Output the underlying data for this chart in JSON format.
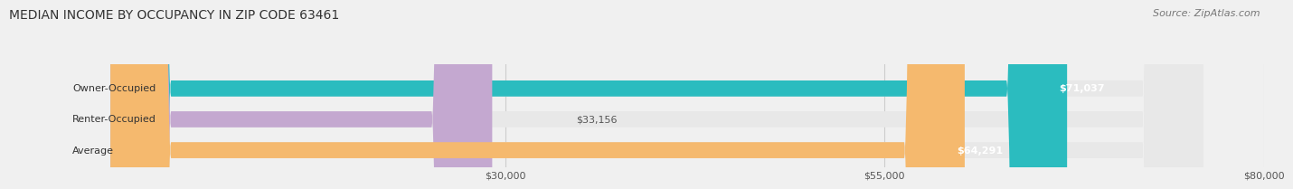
{
  "title": "MEDIAN INCOME BY OCCUPANCY IN ZIP CODE 63461",
  "source": "Source: ZipAtlas.com",
  "categories": [
    "Owner-Occupied",
    "Renter-Occupied",
    "Average"
  ],
  "values": [
    71037,
    33156,
    64291
  ],
  "bar_colors": [
    "#2bbcbf",
    "#c4a8d0",
    "#f5b96e"
  ],
  "bar_labels": [
    "$71,037",
    "$33,156",
    "$64,291"
  ],
  "xlim": [
    0,
    80000
  ],
  "xticks": [
    30000,
    55000,
    80000
  ],
  "xtick_labels": [
    "$30,000",
    "$55,000",
    "$80,000"
  ],
  "background_color": "#f0f0f0",
  "bar_background_color": "#e8e8e8",
  "title_fontsize": 10,
  "source_fontsize": 8,
  "label_fontsize": 8,
  "tick_fontsize": 8,
  "bar_height": 0.52
}
